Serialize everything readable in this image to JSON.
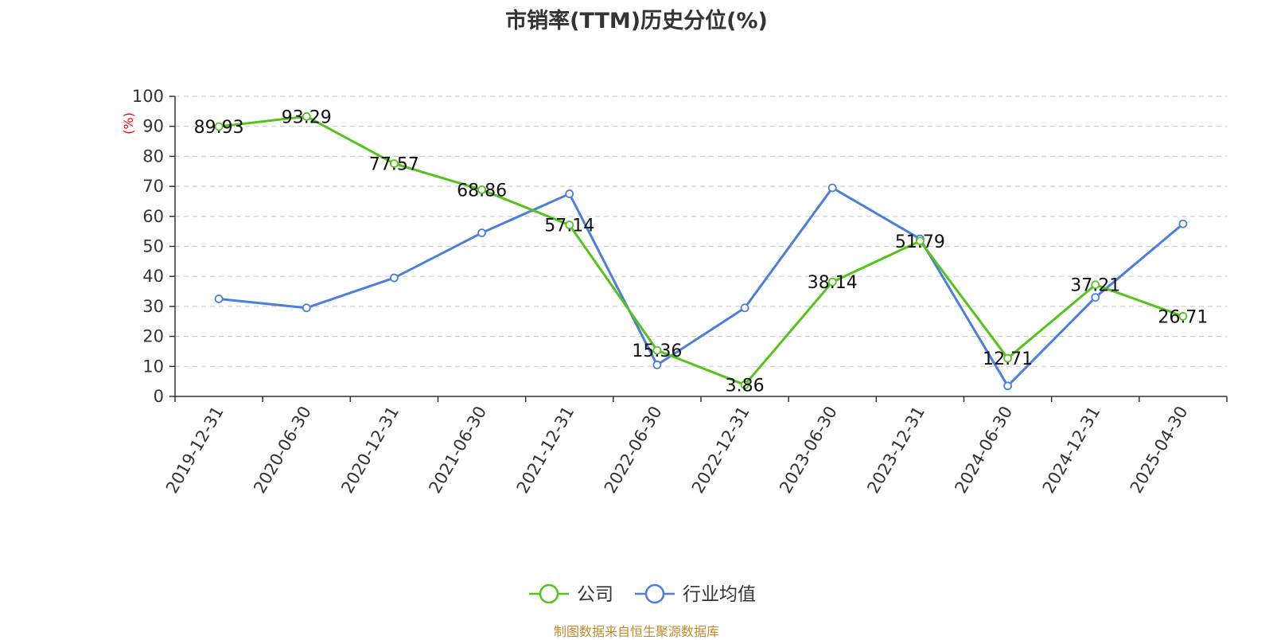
{
  "chart_data": {
    "type": "line",
    "title": "市销率(TTM)历史分位(%)",
    "ylabel": "(%)",
    "xlabel": "",
    "ylim": [
      0,
      100
    ],
    "yticks": [
      0,
      10,
      20,
      30,
      40,
      50,
      60,
      70,
      80,
      90,
      100
    ],
    "grid": true,
    "legend_position": "bottom-center",
    "categories": [
      "2019-12-31",
      "2020-06-30",
      "2020-12-31",
      "2021-06-30",
      "2021-12-31",
      "2022-06-30",
      "2022-12-31",
      "2023-06-30",
      "2023-12-31",
      "2024-06-30",
      "2024-12-31",
      "2025-04-30"
    ],
    "series": [
      {
        "name": "公司",
        "color": "#52c41a",
        "values": [
          89.93,
          93.29,
          77.57,
          68.86,
          57.14,
          15.36,
          3.86,
          38.14,
          51.79,
          12.71,
          37.21,
          26.71
        ],
        "labels": [
          "89.93",
          "93.29",
          "77.57",
          "68.86",
          "57.14",
          "15.36",
          "3.86",
          "38.14",
          "51.79",
          "12.71",
          "37.21",
          "26.71"
        ]
      },
      {
        "name": "行业均值",
        "color": "#4a7fdc",
        "values": [
          32.5,
          29.5,
          39.5,
          54.5,
          67.5,
          10.5,
          29.5,
          69.5,
          52.5,
          3.5,
          33.0,
          57.5
        ]
      }
    ],
    "source": "制图数据来自恒生聚源数据库",
    "ylabel_color": "#ff0000"
  }
}
